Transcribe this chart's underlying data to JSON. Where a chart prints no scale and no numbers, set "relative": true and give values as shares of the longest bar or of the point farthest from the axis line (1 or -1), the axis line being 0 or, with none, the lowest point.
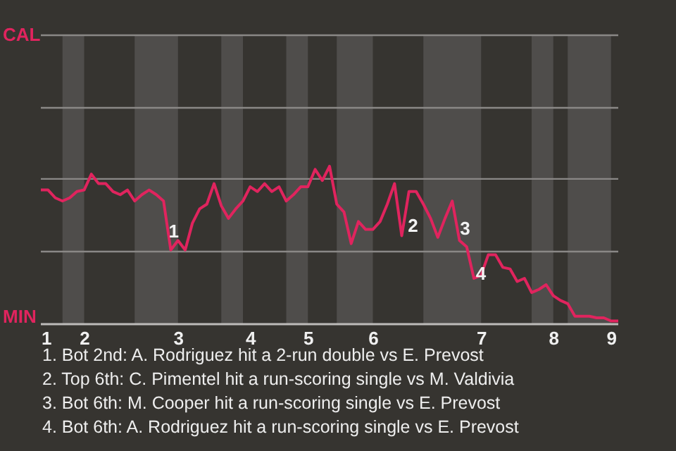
{
  "chart_data": {
    "type": "line",
    "relative": true,
    "categories": [
      "1",
      null,
      null,
      null,
      null,
      null,
      "2",
      null,
      null,
      null,
      null,
      null,
      null,
      null,
      null,
      null,
      null,
      null,
      null,
      "3",
      null,
      null,
      null,
      null,
      null,
      null,
      null,
      null,
      null,
      "4",
      null,
      null,
      null,
      null,
      null,
      null,
      null,
      "5",
      null,
      null,
      null,
      null,
      null,
      null,
      null,
      null,
      "6",
      null,
      null,
      null,
      null,
      null,
      null,
      null,
      null,
      null,
      null,
      null,
      null,
      null,
      null,
      "7",
      null,
      null,
      null,
      null,
      null,
      null,
      null,
      null,
      null,
      "8",
      null,
      null,
      null,
      null,
      null,
      null,
      null,
      "9",
      null
    ],
    "series": [
      {
        "color": "#e0245e",
        "values": [
          0.85,
          0.85,
          0.8,
          0.78,
          0.8,
          0.84,
          0.85,
          0.95,
          0.89,
          0.89,
          0.84,
          0.82,
          0.85,
          0.78,
          0.82,
          0.85,
          0.82,
          0.78,
          0.47,
          0.53,
          0.47,
          0.64,
          0.73,
          0.76,
          0.89,
          0.75,
          0.67,
          0.73,
          0.78,
          0.87,
          0.84,
          0.89,
          0.84,
          0.87,
          0.78,
          0.82,
          0.87,
          0.87,
          0.98,
          0.91,
          1,
          0.76,
          0.71,
          0.51,
          0.65,
          0.6,
          0.6,
          0.65,
          0.76,
          0.89,
          0.56,
          0.84,
          0.84,
          0.76,
          0.67,
          0.55,
          0.67,
          0.78,
          0.53,
          0.49,
          0.29,
          0.31,
          0.44,
          0.44,
          0.36,
          0.35,
          0.27,
          0.29,
          0.2,
          0.22,
          0.25,
          0.18,
          0.15,
          0.13,
          0.05,
          0.05,
          0.05,
          0.04,
          0.04,
          0.02,
          0.02
        ]
      }
    ],
    "ref_lines": [
      {
        "axis": "y",
        "value": 0.46,
        "color": "#8a8886"
      },
      {
        "axis": "y",
        "value": 0.92,
        "color": "#8a8886"
      },
      {
        "axis": "y",
        "value": 1.37,
        "color": "#8a8886"
      },
      {
        "axis": "y",
        "value": 1.83,
        "color": "#8a8886"
      }
    ],
    "annotations": [
      "CAL",
      "MIN",
      "1",
      "2",
      "3",
      "4",
      "1. Bot 2nd: A. Rodriguez hit a 2-run double vs E. Prevost",
      "2. Top 6th: C. Pimentel hit a run-scoring single vs M. Valdivia",
      "3. Bot 6th: M. Cooper hit a run-scoring single vs E. Prevost",
      "4. Bot 6th: A. Rodriguez hit a run-scoring single vs E. Prevost"
    ]
  }
}
